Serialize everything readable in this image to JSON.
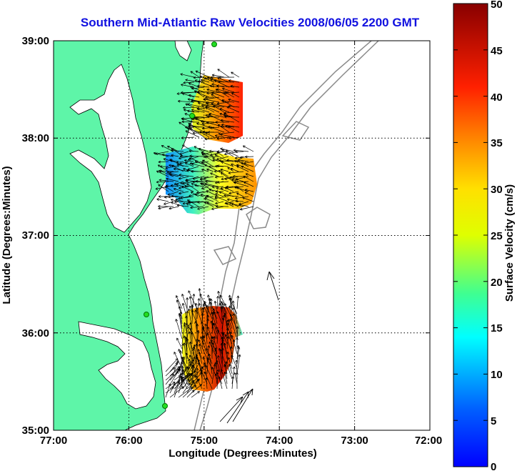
{
  "title": "Southern Mid-Atlantic Raw Velocities 2008/06/05 2200 GMT",
  "axes": {
    "xlabel": "Longitude (Degrees:Minutes)",
    "ylabel": "Latitude (Degrees:Minutes)",
    "x_ticks": [
      "77:00",
      "76:00",
      "75:00",
      "74:00",
      "73:00",
      "72:00"
    ],
    "y_ticks": [
      "39:00",
      "38:00",
      "37:00",
      "36:00",
      "35:00"
    ],
    "xlim": [
      -77,
      -72
    ],
    "ylim": [
      35,
      39
    ]
  },
  "colorbar": {
    "label": "Surface Velocity (cm/s)",
    "ticks": [
      "50",
      "45",
      "40",
      "35",
      "30",
      "25",
      "20",
      "15",
      "10",
      "5",
      "0"
    ],
    "range": [
      0,
      50
    ]
  },
  "colors": {
    "land": "#5ef5a8",
    "title": "#1010e0",
    "station": "#22dd22",
    "bathymetry": "#8a8a8a"
  }
}
